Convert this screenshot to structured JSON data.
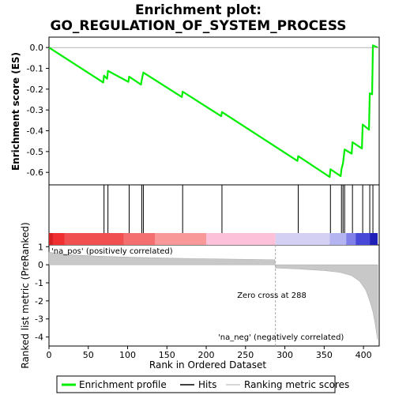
{
  "chart_data": {
    "type": "line",
    "title_line1": "Enrichment plot:",
    "title_line2": "GO_REGULATION_OF_SYSTEM_PROCESS",
    "es_ylabel": "Enrichment score (ES)",
    "metric_ylabel": "Ranked list metric (PreRanked)",
    "xlabel": "Rank in Ordered Dataset",
    "xlim": [
      0,
      420
    ],
    "es_ylim": [
      -0.66,
      0.05
    ],
    "metric_ylim": [
      -4.5,
      1.1
    ],
    "x_ticks": [
      0,
      50,
      100,
      150,
      200,
      250,
      300,
      350,
      400
    ],
    "es_ticks": [
      "0.0",
      "-0.1",
      "-0.2",
      "-0.3",
      "-0.4",
      "-0.5",
      "-0.6"
    ],
    "es_tick_values": [
      0.0,
      -0.1,
      -0.2,
      -0.3,
      -0.4,
      -0.5,
      -0.6
    ],
    "metric_ticks": [
      1,
      0,
      -1,
      -2,
      -3,
      -4
    ],
    "hits": [
      70,
      75,
      102,
      118,
      120,
      170,
      220,
      317,
      358,
      372,
      374,
      376,
      386,
      399,
      408,
      412
    ],
    "es_profile": [
      [
        0,
        0.0
      ],
      [
        69,
        -0.168
      ],
      [
        70,
        -0.135
      ],
      [
        74,
        -0.15
      ],
      [
        75,
        -0.112
      ],
      [
        101,
        -0.165
      ],
      [
        102,
        -0.14
      ],
      [
        117,
        -0.178
      ],
      [
        118,
        -0.155
      ],
      [
        120,
        -0.12
      ],
      [
        169,
        -0.238
      ],
      [
        170,
        -0.212
      ],
      [
        219,
        -0.33
      ],
      [
        220,
        -0.31
      ],
      [
        316,
        -0.545
      ],
      [
        317,
        -0.522
      ],
      [
        357,
        -0.622
      ],
      [
        358,
        -0.585
      ],
      [
        371,
        -0.618
      ],
      [
        372,
        -0.585
      ],
      [
        374,
        -0.555
      ],
      [
        376,
        -0.49
      ],
      [
        385,
        -0.51
      ],
      [
        386,
        -0.455
      ],
      [
        398,
        -0.485
      ],
      [
        399,
        -0.37
      ],
      [
        407,
        -0.395
      ],
      [
        408,
        -0.22
      ],
      [
        411,
        -0.225
      ],
      [
        412,
        0.01
      ],
      [
        418,
        0.0
      ]
    ],
    "metric_curve": [
      [
        0,
        0.7
      ],
      [
        10,
        0.62
      ],
      [
        30,
        0.55
      ],
      [
        60,
        0.48
      ],
      [
        100,
        0.42
      ],
      [
        150,
        0.37
      ],
      [
        200,
        0.33
      ],
      [
        250,
        0.3
      ],
      [
        287,
        0.28
      ],
      [
        288,
        -0.18
      ],
      [
        320,
        -0.24
      ],
      [
        350,
        -0.32
      ],
      [
        370,
        -0.42
      ],
      [
        385,
        -0.6
      ],
      [
        395,
        -0.9
      ],
      [
        403,
        -1.4
      ],
      [
        408,
        -2.0
      ],
      [
        412,
        -2.6
      ],
      [
        415,
        -3.3
      ],
      [
        418,
        -4.15
      ]
    ],
    "zero_cross_x": 288,
    "zero_cross_label": "Zero cross at 288",
    "pos_label": "'na_pos' (positively correlated)",
    "neg_label": "'na_neg' (negatively correlated)",
    "band_segments": [
      {
        "x0": 0,
        "x1": 5,
        "color": "#d42020"
      },
      {
        "x0": 5,
        "x1": 20,
        "color": "#f03030"
      },
      {
        "x0": 20,
        "x1": 95,
        "color": "#f05050"
      },
      {
        "x0": 95,
        "x1": 135,
        "color": "#f47070"
      },
      {
        "x0": 135,
        "x1": 200,
        "color": "#f89898"
      },
      {
        "x0": 200,
        "x1": 288,
        "color": "#fcc0d8"
      },
      {
        "x0": 288,
        "x1": 357,
        "color": "#d4d0f4"
      },
      {
        "x0": 357,
        "x1": 378,
        "color": "#b4b4f0"
      },
      {
        "x0": 378,
        "x1": 390,
        "color": "#8080e8"
      },
      {
        "x0": 390,
        "x1": 408,
        "color": "#4848d8"
      },
      {
        "x0": 408,
        "x1": 418,
        "color": "#2020b8"
      }
    ],
    "colors": {
      "es_line": "#00ee00",
      "hit": "#000000",
      "metric_fill": "#c8c8c8",
      "pos_label": "#d02020",
      "neg_label": "#2020c0",
      "zero_line": "#aaaaaa"
    },
    "legend": {
      "items": [
        "Enrichment profile",
        "Hits",
        "Ranking metric scores"
      ]
    }
  }
}
